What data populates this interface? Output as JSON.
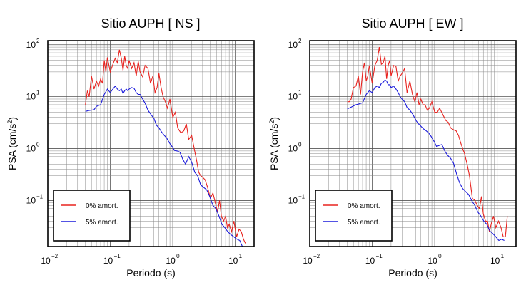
{
  "chart_data": [
    {
      "type": "line",
      "title": "Sitio AUPH [ NS ]",
      "xlabel": "Periodo (s)",
      "ylabel": "PSA (cm/s2)",
      "xscale": "log",
      "yscale": "log",
      "xlim": [
        0.01,
        20
      ],
      "ylim": [
        0.013,
        120
      ],
      "grid": true,
      "legend_position": "bottom-left",
      "xticks": [
        {
          "b": "10",
          "e": "−2"
        },
        {
          "b": "10",
          "e": "−1"
        },
        {
          "b": "10",
          "e": "0"
        },
        {
          "b": "10",
          "e": "1"
        }
      ],
      "yticks": [
        {
          "b": "10",
          "e": "2"
        },
        {
          "b": "10",
          "e": "1"
        },
        {
          "b": "10",
          "e": "0"
        },
        {
          "b": "10",
          "e": "−1"
        }
      ],
      "series": [
        {
          "name": "0% amort.",
          "color": "#e8231f",
          "x": [
            0.04,
            0.043,
            0.046,
            0.05,
            0.055,
            0.06,
            0.065,
            0.07,
            0.075,
            0.08,
            0.085,
            0.09,
            0.1,
            0.11,
            0.12,
            0.13,
            0.14,
            0.15,
            0.16,
            0.17,
            0.18,
            0.19,
            0.2,
            0.22,
            0.24,
            0.26,
            0.28,
            0.3,
            0.33,
            0.36,
            0.4,
            0.44,
            0.48,
            0.52,
            0.56,
            0.6,
            0.65,
            0.7,
            0.76,
            0.82,
            0.9,
            1.0,
            1.1,
            1.2,
            1.35,
            1.5,
            1.65,
            1.8,
            2.0,
            2.2,
            2.4,
            2.6,
            2.8,
            3.0,
            3.3,
            3.6,
            4.0,
            4.4,
            4.8,
            5.2,
            5.6,
            6.0,
            6.5,
            7.0,
            7.5,
            8.0,
            8.7,
            9.5,
            10.5,
            11.5,
            12.5,
            13.5,
            14.5
          ],
          "y": [
            7,
            13,
            10,
            25,
            14,
            20,
            16,
            22,
            18,
            50,
            30,
            57,
            30,
            42,
            55,
            45,
            80,
            55,
            32,
            60,
            40,
            35,
            50,
            35,
            45,
            25,
            48,
            30,
            24,
            40,
            35,
            18,
            25,
            12,
            15,
            28,
            15,
            10,
            8,
            6,
            9,
            4,
            5,
            2.5,
            2,
            2.2,
            3,
            1.5,
            1.8,
            1,
            0.6,
            0.35,
            0.3,
            0.28,
            0.25,
            0.18,
            0.11,
            0.14,
            0.09,
            0.06,
            0.1,
            0.05,
            0.04,
            0.05,
            0.03,
            0.035,
            0.025,
            0.04,
            0.02,
            0.028,
            0.025,
            0.018,
            0.015
          ]
        },
        {
          "name": "5% amort.",
          "color": "#1a1adb",
          "x": [
            0.04,
            0.045,
            0.05,
            0.055,
            0.06,
            0.07,
            0.08,
            0.09,
            0.1,
            0.11,
            0.12,
            0.13,
            0.14,
            0.15,
            0.16,
            0.17,
            0.18,
            0.19,
            0.2,
            0.22,
            0.24,
            0.26,
            0.28,
            0.3,
            0.33,
            0.36,
            0.4,
            0.45,
            0.5,
            0.55,
            0.6,
            0.66,
            0.73,
            0.8,
            0.88,
            0.97,
            1.07,
            1.18,
            1.3,
            1.45,
            1.6,
            1.8,
            2.0,
            2.25,
            2.5,
            2.8,
            3.1,
            3.5,
            3.9,
            4.4,
            4.9,
            5.5,
            6.1,
            6.8,
            7.6,
            8.5,
            9.5,
            10.6,
            11.8,
            13.0
          ],
          "y": [
            5.2,
            5.4,
            5.5,
            5.6,
            6.5,
            7,
            11,
            14,
            12,
            14,
            16,
            14,
            13,
            14,
            11.5,
            13,
            14,
            13,
            14,
            15,
            14.5,
            12,
            11,
            11,
            9,
            7.5,
            5.5,
            4.5,
            3.8,
            2.8,
            2.5,
            2.1,
            1.8,
            1.6,
            1.3,
            1.1,
            0.92,
            0.9,
            0.85,
            0.62,
            0.5,
            0.7,
            0.55,
            0.35,
            0.3,
            0.2,
            0.18,
            0.16,
            0.12,
            0.08,
            0.07,
            0.05,
            0.035,
            0.03,
            0.025,
            0.022,
            0.02,
            0.018,
            0.017,
            0.013
          ]
        }
      ]
    },
    {
      "type": "line",
      "title": "Sitio AUPH [ EW ]",
      "xlabel": "Periodo (s)",
      "ylabel": "PSA (cm/s2)",
      "xscale": "log",
      "yscale": "log",
      "xlim": [
        0.01,
        20
      ],
      "ylim": [
        0.013,
        120
      ],
      "grid": true,
      "legend_position": "bottom-left",
      "xticks": [
        {
          "b": "10",
          "e": "−2"
        },
        {
          "b": "10",
          "e": "−1"
        },
        {
          "b": "10",
          "e": "0"
        },
        {
          "b": "10",
          "e": "1"
        }
      ],
      "yticks": [
        {
          "b": "10",
          "e": "2"
        },
        {
          "b": "10",
          "e": "1"
        },
        {
          "b": "10",
          "e": "0"
        },
        {
          "b": "10",
          "e": "−1"
        }
      ],
      "series": [
        {
          "name": "0% amort.",
          "color": "#e8231f",
          "x": [
            0.04,
            0.043,
            0.046,
            0.05,
            0.055,
            0.06,
            0.065,
            0.07,
            0.075,
            0.08,
            0.085,
            0.09,
            0.1,
            0.11,
            0.12,
            0.13,
            0.14,
            0.15,
            0.16,
            0.17,
            0.18,
            0.19,
            0.2,
            0.22,
            0.24,
            0.26,
            0.28,
            0.3,
            0.33,
            0.36,
            0.4,
            0.44,
            0.48,
            0.52,
            0.56,
            0.6,
            0.65,
            0.7,
            0.76,
            0.82,
            0.9,
            1.0,
            1.1,
            1.2,
            1.35,
            1.5,
            1.65,
            1.8,
            2.0,
            2.2,
            2.4,
            2.6,
            2.8,
            3.0,
            3.3,
            3.6,
            4.0,
            4.4,
            4.8,
            5.2,
            5.6,
            6.0,
            6.5,
            7.0,
            7.5,
            8.0,
            8.7,
            9.5,
            10.5,
            11.5,
            12.5,
            13.5,
            14.5
          ],
          "y": [
            8,
            8,
            9,
            15,
            16,
            25,
            11,
            30,
            45,
            20,
            25,
            40,
            18,
            40,
            50,
            90,
            42,
            45,
            60,
            22,
            40,
            50,
            25,
            40,
            38,
            20,
            25,
            28,
            35,
            12,
            20,
            11,
            8,
            12,
            7,
            9,
            7,
            7,
            5.5,
            6,
            8,
            5,
            5,
            6,
            4.5,
            3.5,
            3.2,
            2.5,
            2.3,
            2.2,
            1.8,
            1.3,
            1,
            0.8,
            0.5,
            0.3,
            0.11,
            0.1,
            0.08,
            0.07,
            0.12,
            0.055,
            0.04,
            0.04,
            0.025,
            0.035,
            0.05,
            0.03,
            0.04,
            0.03,
            0.02,
            0.02,
            0.05
          ]
        },
        {
          "name": "5% amort.",
          "color": "#1a1adb",
          "x": [
            0.04,
            0.045,
            0.05,
            0.055,
            0.06,
            0.07,
            0.08,
            0.09,
            0.1,
            0.11,
            0.12,
            0.13,
            0.14,
            0.15,
            0.16,
            0.17,
            0.18,
            0.19,
            0.2,
            0.22,
            0.24,
            0.26,
            0.28,
            0.3,
            0.33,
            0.36,
            0.4,
            0.45,
            0.5,
            0.55,
            0.6,
            0.66,
            0.73,
            0.8,
            0.88,
            0.97,
            1.07,
            1.18,
            1.3,
            1.45,
            1.6,
            1.8,
            2.0,
            2.25,
            2.5,
            2.8,
            3.1,
            3.5,
            3.9,
            4.4,
            4.9,
            5.5,
            6.1,
            6.8,
            7.6,
            8.5,
            9.5,
            10.6,
            11.8,
            13.0
          ],
          "y": [
            5.8,
            6.2,
            6.6,
            7,
            7.2,
            7.6,
            11,
            13,
            12,
            15,
            16,
            15,
            18,
            19,
            21,
            20,
            17,
            17,
            15,
            16,
            14,
            12,
            10,
            9,
            8,
            6.2,
            5.5,
            4.5,
            3.5,
            3,
            2.7,
            2.4,
            2.2,
            2,
            1.7,
            1.4,
            1.1,
            1.15,
            1.2,
            0.9,
            0.75,
            0.65,
            0.52,
            0.32,
            0.22,
            0.17,
            0.15,
            0.13,
            0.1,
            0.08,
            0.06,
            0.05,
            0.04,
            0.035,
            0.026,
            0.023,
            0.02,
            0.017,
            0.018,
            0.017
          ]
        }
      ]
    }
  ]
}
